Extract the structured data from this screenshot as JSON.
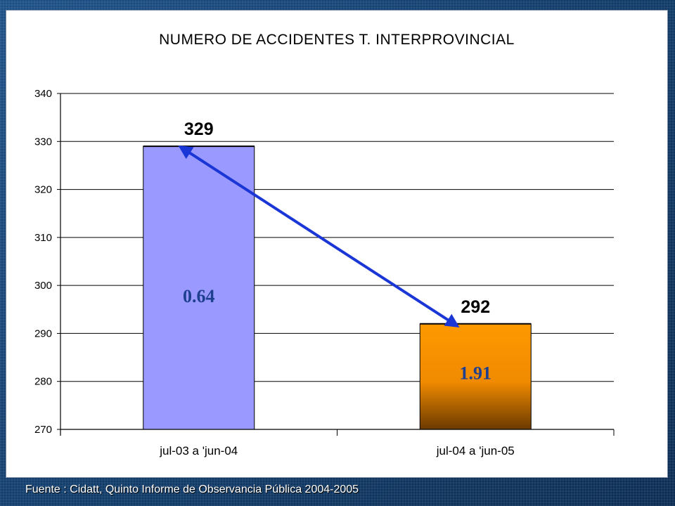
{
  "footer": {
    "source": "Fuente : Cidatt, Quinto Informe de Observancia Pública 2004-2005"
  },
  "chart_data": {
    "type": "bar",
    "title": "NUMERO DE ACCIDENTES T. INTERPROVINCIAL",
    "xlabel": "",
    "ylabel": "",
    "categories": [
      "jul-03 a 'jun-04",
      "jul-04 a 'jun-05"
    ],
    "values": [
      329,
      292
    ],
    "data_labels": [
      "329",
      "292"
    ],
    "ylim": [
      270,
      340
    ],
    "yticks": [
      270,
      280,
      290,
      300,
      310,
      320,
      330,
      340
    ],
    "grid": true,
    "legend": "none",
    "bar_styles": [
      {
        "fill": "#9999ff",
        "stroke": "#000000"
      },
      {
        "fill": "gradient-orange-brown",
        "stroke": "#000000"
      }
    ],
    "gradient_colors": [
      "#ff9900",
      "#6b3a00"
    ],
    "annotations": [
      {
        "text": "0.64",
        "color": "#1f3f8f",
        "bar": 0
      },
      {
        "text": "1.91",
        "color": "#1f3f8f",
        "bar": 1
      }
    ],
    "arrow": {
      "from_bar": 0,
      "to_bar": 1,
      "color": "#1a36d6",
      "double_headed": true
    }
  }
}
